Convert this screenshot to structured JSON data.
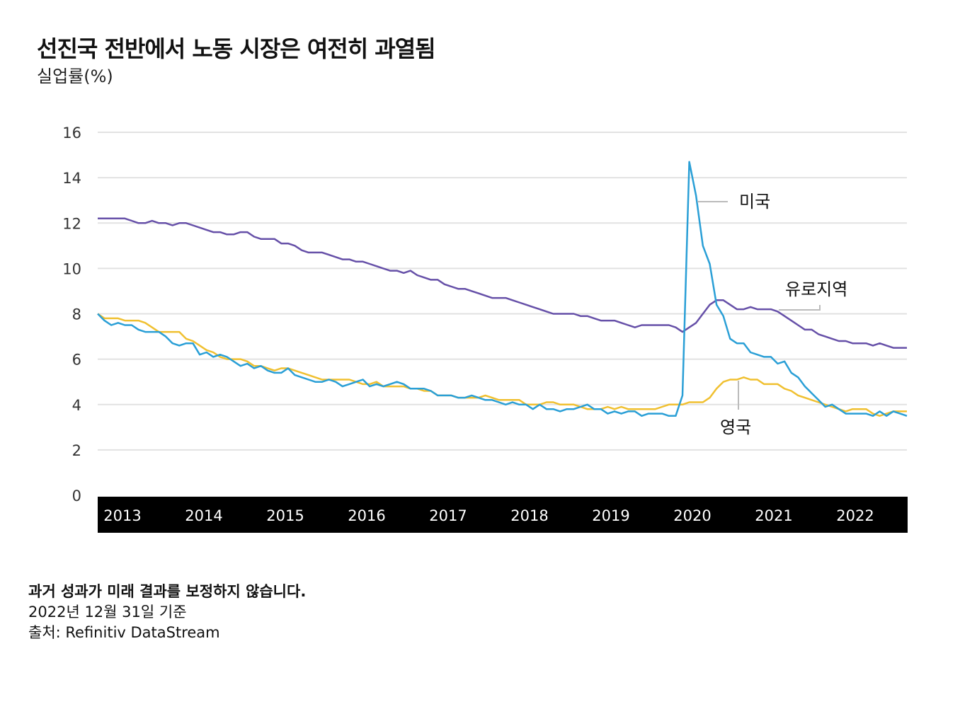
{
  "title": "선진국 전반에서 노동 시장은 여전히 과열됨",
  "subtitle": "실업률(%)",
  "footer": {
    "disclaimer": "과거 성과가 미래 결과를 보정하지 않습니다.",
    "as_of": "2022년 12월 31일 기준",
    "source": "출처: Refinitiv DataStream"
  },
  "chart_data": {
    "type": "line",
    "title": "선진국 전반에서 노동 시장은 여전히 과열됨",
    "ylabel": "실업률(%)",
    "ylim": [
      0,
      16
    ],
    "yticks": [
      "0",
      "2",
      "4",
      "6",
      "8",
      "10",
      "12",
      "14",
      "16"
    ],
    "xticks": [
      "2013",
      "2014",
      "2015",
      "2016",
      "2017",
      "2018",
      "2019",
      "2020",
      "2021",
      "2022"
    ],
    "x_range": [
      "2013-01",
      "2022-12"
    ],
    "frequency": "monthly",
    "grid": true,
    "series": [
      {
        "name": "미국",
        "color": "#2a9fd6",
        "values": [
          8.0,
          7.7,
          7.5,
          7.6,
          7.5,
          7.5,
          7.3,
          7.2,
          7.2,
          7.2,
          7.0,
          6.7,
          6.6,
          6.7,
          6.7,
          6.2,
          6.3,
          6.1,
          6.2,
          6.1,
          5.9,
          5.7,
          5.8,
          5.6,
          5.7,
          5.5,
          5.4,
          5.4,
          5.6,
          5.3,
          5.2,
          5.1,
          5.0,
          5.0,
          5.1,
          5.0,
          4.8,
          4.9,
          5.0,
          5.1,
          4.8,
          4.9,
          4.8,
          4.9,
          5.0,
          4.9,
          4.7,
          4.7,
          4.7,
          4.6,
          4.4,
          4.4,
          4.4,
          4.3,
          4.3,
          4.4,
          4.3,
          4.2,
          4.2,
          4.1,
          4.0,
          4.1,
          4.0,
          4.0,
          3.8,
          4.0,
          3.8,
          3.8,
          3.7,
          3.8,
          3.8,
          3.9,
          4.0,
          3.8,
          3.8,
          3.6,
          3.7,
          3.6,
          3.7,
          3.7,
          3.5,
          3.6,
          3.6,
          3.6,
          3.5,
          3.5,
          4.4,
          14.7,
          13.2,
          11.0,
          10.2,
          8.4,
          7.9,
          6.9,
          6.7,
          6.7,
          6.3,
          6.2,
          6.1,
          6.1,
          5.8,
          5.9,
          5.4,
          5.2,
          4.8,
          4.5,
          4.2,
          3.9,
          4.0,
          3.8,
          3.6,
          3.6,
          3.6,
          3.6,
          3.5,
          3.7,
          3.5,
          3.7,
          3.6,
          3.5
        ]
      },
      {
        "name": "유로지역",
        "color": "#6650a8",
        "values": [
          12.2,
          12.2,
          12.2,
          12.2,
          12.2,
          12.1,
          12.0,
          12.0,
          12.1,
          12.0,
          12.0,
          11.9,
          12.0,
          12.0,
          11.9,
          11.8,
          11.7,
          11.6,
          11.6,
          11.5,
          11.5,
          11.6,
          11.6,
          11.4,
          11.3,
          11.3,
          11.3,
          11.1,
          11.1,
          11.0,
          10.8,
          10.7,
          10.7,
          10.7,
          10.6,
          10.5,
          10.4,
          10.4,
          10.3,
          10.3,
          10.2,
          10.1,
          10.0,
          9.9,
          9.9,
          9.8,
          9.9,
          9.7,
          9.6,
          9.5,
          9.5,
          9.3,
          9.2,
          9.1,
          9.1,
          9.0,
          8.9,
          8.8,
          8.7,
          8.7,
          8.7,
          8.6,
          8.5,
          8.4,
          8.3,
          8.2,
          8.1,
          8.0,
          8.0,
          8.0,
          8.0,
          7.9,
          7.9,
          7.8,
          7.7,
          7.7,
          7.7,
          7.6,
          7.5,
          7.4,
          7.5,
          7.5,
          7.5,
          7.5,
          7.5,
          7.4,
          7.2,
          7.4,
          7.6,
          8.0,
          8.4,
          8.6,
          8.6,
          8.4,
          8.2,
          8.2,
          8.3,
          8.2,
          8.2,
          8.2,
          8.1,
          7.9,
          7.7,
          7.5,
          7.3,
          7.3,
          7.1,
          7.0,
          6.9,
          6.8,
          6.8,
          6.7,
          6.7,
          6.7,
          6.6,
          6.7,
          6.6,
          6.5,
          6.5,
          6.5
        ]
      },
      {
        "name": "영국",
        "color": "#f0c030",
        "values": [
          8.0,
          7.8,
          7.8,
          7.8,
          7.7,
          7.7,
          7.7,
          7.6,
          7.4,
          7.2,
          7.2,
          7.2,
          7.2,
          6.9,
          6.8,
          6.6,
          6.4,
          6.3,
          6.1,
          6.0,
          6.0,
          6.0,
          5.9,
          5.7,
          5.7,
          5.6,
          5.5,
          5.6,
          5.6,
          5.5,
          5.4,
          5.3,
          5.2,
          5.1,
          5.1,
          5.1,
          5.1,
          5.1,
          5.0,
          4.9,
          4.9,
          5.0,
          4.8,
          4.8,
          4.8,
          4.8,
          4.7,
          4.7,
          4.6,
          4.6,
          4.4,
          4.4,
          4.4,
          4.3,
          4.3,
          4.3,
          4.3,
          4.4,
          4.3,
          4.2,
          4.2,
          4.2,
          4.2,
          4.0,
          4.0,
          4.0,
          4.1,
          4.1,
          4.0,
          4.0,
          4.0,
          3.9,
          3.8,
          3.8,
          3.8,
          3.9,
          3.8,
          3.9,
          3.8,
          3.8,
          3.8,
          3.8,
          3.8,
          3.9,
          4.0,
          4.0,
          4.0,
          4.1,
          4.1,
          4.1,
          4.3,
          4.7,
          5.0,
          5.1,
          5.1,
          5.2,
          5.1,
          5.1,
          4.9,
          4.9,
          4.9,
          4.7,
          4.6,
          4.4,
          4.3,
          4.2,
          4.1,
          4.0,
          3.9,
          3.8,
          3.7,
          3.8,
          3.8,
          3.8,
          3.6,
          3.5,
          3.6,
          3.7,
          3.7,
          3.7
        ]
      }
    ]
  }
}
